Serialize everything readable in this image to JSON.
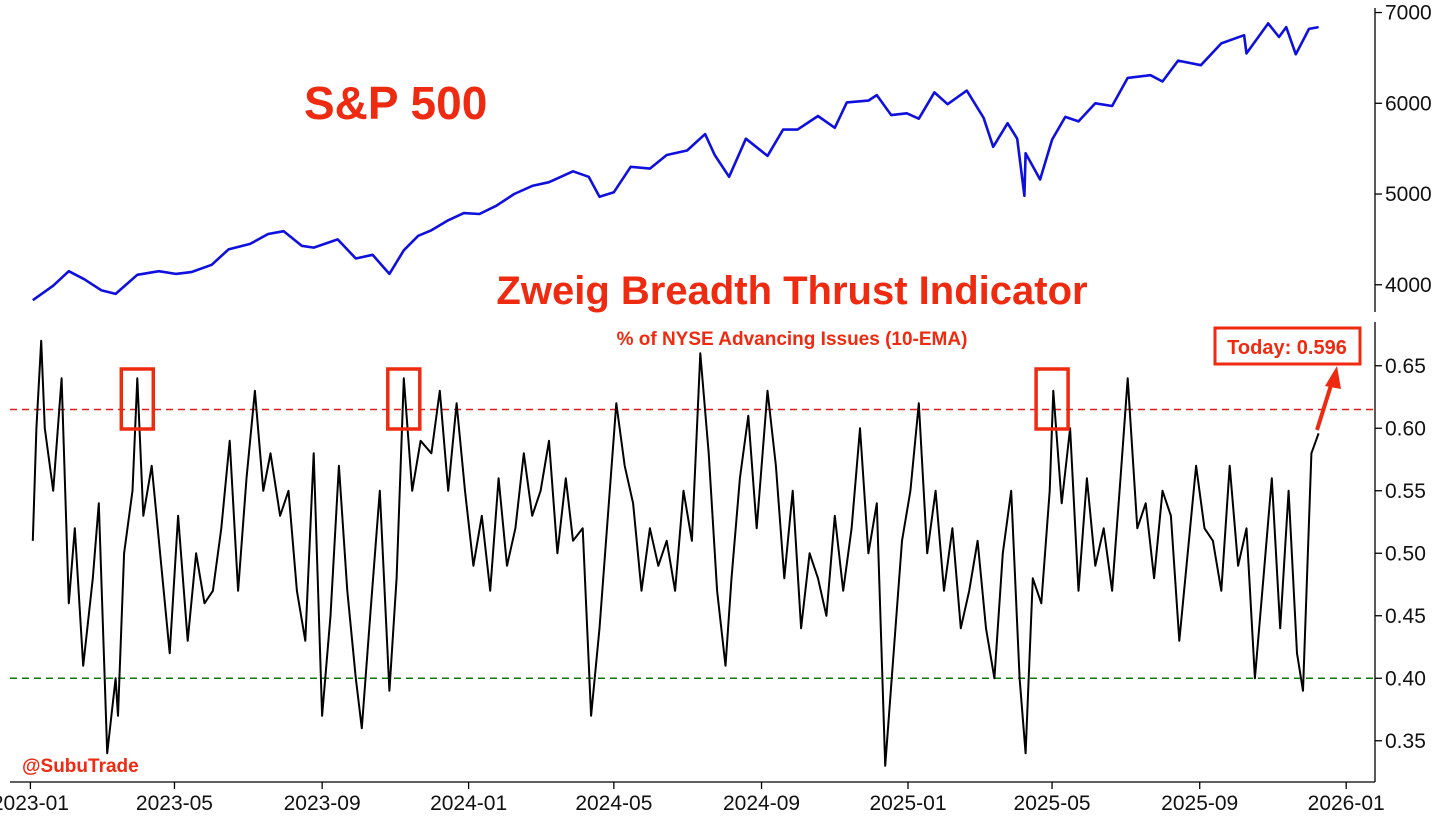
{
  "colors": {
    "sp500_line": "#1010dd",
    "zbt_line": "#000000",
    "accent_red": "#ee2a10",
    "upper_threshold_line": "#e02020",
    "lower_threshold_line": "#0a7a0a"
  },
  "chart_data": [
    {
      "type": "line",
      "title": "S&P 500",
      "y_axis_side": "right",
      "ylim": [
        3700,
        7050
      ],
      "yticks": [
        4000,
        5000,
        6000,
        7000
      ],
      "ytick_labels": [
        "4000",
        "5000",
        "6000",
        "7000"
      ],
      "series": [
        {
          "x": [
            "2023-01-03",
            "2023-01-20",
            "2023-02-02",
            "2023-02-15",
            "2023-03-01",
            "2023-03-13",
            "2023-03-31",
            "2023-04-18",
            "2023-05-02",
            "2023-05-15",
            "2023-06-01",
            "2023-06-15",
            "2023-07-03",
            "2023-07-18",
            "2023-07-31",
            "2023-08-15",
            "2023-08-25",
            "2023-09-14",
            "2023-09-29",
            "2023-10-13",
            "2023-10-27",
            "2023-11-08",
            "2023-11-20",
            "2023-12-01",
            "2023-12-15",
            "2023-12-28",
            "2024-01-10",
            "2024-01-24",
            "2024-02-08",
            "2024-02-23",
            "2024-03-08",
            "2024-03-28",
            "2024-04-10",
            "2024-04-19",
            "2024-05-01",
            "2024-05-15",
            "2024-05-31",
            "2024-06-14",
            "2024-07-01",
            "2024-07-16",
            "2024-07-24",
            "2024-08-05",
            "2024-08-19",
            "2024-09-06",
            "2024-09-19",
            "2024-10-01",
            "2024-10-18",
            "2024-11-01",
            "2024-11-11",
            "2024-11-29",
            "2024-12-06",
            "2024-12-18",
            "2024-12-31",
            "2025-01-10",
            "2025-01-23",
            "2025-02-03",
            "2025-02-19",
            "2025-03-05",
            "2025-03-13",
            "2025-03-25",
            "2025-04-02",
            "2025-04-08",
            "2025-04-09",
            "2025-04-21",
            "2025-05-01",
            "2025-05-12",
            "2025-05-23",
            "2025-06-06",
            "2025-06-20",
            "2025-07-03",
            "2025-07-22",
            "2025-08-01",
            "2025-08-14",
            "2025-09-02",
            "2025-09-19",
            "2025-10-08",
            "2025-10-10",
            "2025-10-28",
            "2025-11-06",
            "2025-11-12",
            "2025-11-20",
            "2025-12-01",
            "2025-12-09"
          ],
          "values": [
            3830,
            3990,
            4150,
            4060,
            3940,
            3900,
            4110,
            4150,
            4120,
            4140,
            4220,
            4390,
            4450,
            4560,
            4590,
            4430,
            4410,
            4500,
            4290,
            4330,
            4120,
            4380,
            4540,
            4600,
            4710,
            4790,
            4780,
            4870,
            5000,
            5090,
            5130,
            5250,
            5190,
            4970,
            5020,
            5300,
            5280,
            5430,
            5480,
            5660,
            5430,
            5190,
            5610,
            5420,
            5710,
            5710,
            5860,
            5730,
            6010,
            6030,
            6090,
            5870,
            5890,
            5830,
            6120,
            5990,
            6140,
            5840,
            5520,
            5780,
            5610,
            4980,
            5450,
            5160,
            5600,
            5850,
            5800,
            6000,
            5970,
            6280,
            6310,
            6240,
            6470,
            6420,
            6660,
            6750,
            6550,
            6880,
            6730,
            6840,
            6540,
            6820,
            6840
          ]
        }
      ]
    },
    {
      "type": "line",
      "title": "Zweig Breadth Thrust Indicator",
      "subtitle": "% of NYSE Advancing Issues (10-EMA)",
      "x_axis": {
        "range": [
          "2022-12-15",
          "2026-01-25"
        ],
        "ticks": [
          "2023-01-01",
          "2023-05-01",
          "2023-09-01",
          "2024-01-01",
          "2024-05-01",
          "2024-09-01",
          "2025-01-01",
          "2025-05-01",
          "2025-09-01",
          "2026-01-01"
        ],
        "tick_labels": [
          "2023-01",
          "2023-05",
          "2023-09",
          "2024-01",
          "2024-05",
          "2024-09",
          "2025-01",
          "2025-05",
          "2025-09",
          "2026-01"
        ]
      },
      "y_axis_side": "right",
      "ylim": [
        0.317,
        0.685
      ],
      "yticks": [
        0.35,
        0.4,
        0.45,
        0.5,
        0.55,
        0.6,
        0.65
      ],
      "ytick_labels": [
        "0.35",
        "0.40",
        "0.45",
        "0.50",
        "0.55",
        "0.60",
        "0.65"
      ],
      "threshold_lines": [
        {
          "value": 0.615,
          "style": "dashed",
          "color": "#e02020"
        },
        {
          "value": 0.4,
          "style": "dashed",
          "color": "#0a7a0a"
        }
      ],
      "highlight_box_dates": [
        "2023-03-31",
        "2023-11-08",
        "2025-05-01"
      ],
      "series": [
        {
          "x": [
            "2023-01-03",
            "2023-01-06",
            "2023-01-10",
            "2023-01-13",
            "2023-01-20",
            "2023-01-27",
            "2023-02-02",
            "2023-02-07",
            "2023-02-14",
            "2023-02-22",
            "2023-02-27",
            "2023-03-06",
            "2023-03-13",
            "2023-03-15",
            "2023-03-20",
            "2023-03-27",
            "2023-03-31",
            "2023-04-05",
            "2023-04-12",
            "2023-04-20",
            "2023-04-27",
            "2023-05-04",
            "2023-05-12",
            "2023-05-19",
            "2023-05-26",
            "2023-06-02",
            "2023-06-09",
            "2023-06-16",
            "2023-06-23",
            "2023-06-30",
            "2023-07-07",
            "2023-07-14",
            "2023-07-20",
            "2023-07-28",
            "2023-08-04",
            "2023-08-11",
            "2023-08-18",
            "2023-08-25",
            "2023-09-01",
            "2023-09-08",
            "2023-09-15",
            "2023-09-22",
            "2023-09-29",
            "2023-10-04",
            "2023-10-11",
            "2023-10-19",
            "2023-10-27",
            "2023-11-02",
            "2023-11-08",
            "2023-11-15",
            "2023-11-22",
            "2023-12-01",
            "2023-12-08",
            "2023-12-15",
            "2023-12-22",
            "2023-12-29",
            "2024-01-05",
            "2024-01-12",
            "2024-01-19",
            "2024-01-26",
            "2024-02-02",
            "2024-02-09",
            "2024-02-16",
            "2024-02-23",
            "2024-03-01",
            "2024-03-08",
            "2024-03-15",
            "2024-03-22",
            "2024-03-28",
            "2024-04-05",
            "2024-04-12",
            "2024-04-19",
            "2024-04-26",
            "2024-05-03",
            "2024-05-10",
            "2024-05-17",
            "2024-05-24",
            "2024-05-31",
            "2024-06-07",
            "2024-06-14",
            "2024-06-21",
            "2024-06-28",
            "2024-07-05",
            "2024-07-12",
            "2024-07-19",
            "2024-07-26",
            "2024-08-02",
            "2024-08-07",
            "2024-08-14",
            "2024-08-21",
            "2024-08-28",
            "2024-09-06",
            "2024-09-13",
            "2024-09-20",
            "2024-09-27",
            "2024-10-04",
            "2024-10-11",
            "2024-10-18",
            "2024-10-25",
            "2024-11-01",
            "2024-11-08",
            "2024-11-15",
            "2024-11-22",
            "2024-11-29",
            "2024-12-06",
            "2024-12-13",
            "2024-12-20",
            "2024-12-27",
            "2025-01-03",
            "2025-01-10",
            "2025-01-17",
            "2025-01-24",
            "2025-01-31",
            "2025-02-07",
            "2025-02-14",
            "2025-02-21",
            "2025-02-28",
            "2025-03-07",
            "2025-03-14",
            "2025-03-21",
            "2025-03-28",
            "2025-04-04",
            "2025-04-09",
            "2025-04-15",
            "2025-04-22",
            "2025-04-29",
            "2025-05-02",
            "2025-05-09",
            "2025-05-16",
            "2025-05-23",
            "2025-05-30",
            "2025-06-06",
            "2025-06-13",
            "2025-06-20",
            "2025-06-27",
            "2025-07-03",
            "2025-07-11",
            "2025-07-18",
            "2025-07-25",
            "2025-08-01",
            "2025-08-08",
            "2025-08-15",
            "2025-08-22",
            "2025-08-29",
            "2025-09-05",
            "2025-09-12",
            "2025-09-19",
            "2025-09-26",
            "2025-10-03",
            "2025-10-10",
            "2025-10-17",
            "2025-10-24",
            "2025-10-31",
            "2025-11-07",
            "2025-11-14",
            "2025-11-21",
            "2025-11-26",
            "2025-12-03",
            "2025-12-09"
          ],
          "values": [
            0.51,
            0.6,
            0.67,
            0.6,
            0.55,
            0.64,
            0.46,
            0.52,
            0.41,
            0.48,
            0.54,
            0.34,
            0.4,
            0.37,
            0.5,
            0.55,
            0.64,
            0.53,
            0.57,
            0.49,
            0.42,
            0.53,
            0.43,
            0.5,
            0.46,
            0.47,
            0.52,
            0.59,
            0.47,
            0.56,
            0.63,
            0.55,
            0.58,
            0.53,
            0.55,
            0.47,
            0.43,
            0.58,
            0.37,
            0.45,
            0.57,
            0.47,
            0.4,
            0.36,
            0.45,
            0.55,
            0.39,
            0.48,
            0.64,
            0.55,
            0.59,
            0.58,
            0.63,
            0.55,
            0.62,
            0.55,
            0.49,
            0.53,
            0.47,
            0.56,
            0.49,
            0.52,
            0.58,
            0.53,
            0.55,
            0.59,
            0.5,
            0.56,
            0.51,
            0.52,
            0.37,
            0.44,
            0.53,
            0.62,
            0.57,
            0.54,
            0.47,
            0.52,
            0.49,
            0.51,
            0.47,
            0.55,
            0.51,
            0.66,
            0.58,
            0.47,
            0.41,
            0.48,
            0.56,
            0.61,
            0.52,
            0.63,
            0.57,
            0.48,
            0.55,
            0.44,
            0.5,
            0.48,
            0.45,
            0.53,
            0.47,
            0.52,
            0.6,
            0.5,
            0.54,
            0.33,
            0.42,
            0.51,
            0.55,
            0.62,
            0.5,
            0.55,
            0.47,
            0.52,
            0.44,
            0.47,
            0.51,
            0.44,
            0.4,
            0.5,
            0.55,
            0.4,
            0.34,
            0.48,
            0.46,
            0.55,
            0.63,
            0.54,
            0.6,
            0.47,
            0.56,
            0.49,
            0.52,
            0.47,
            0.56,
            0.64,
            0.52,
            0.54,
            0.48,
            0.55,
            0.53,
            0.43,
            0.5,
            0.57,
            0.52,
            0.51,
            0.47,
            0.57,
            0.49,
            0.52,
            0.4,
            0.48,
            0.56,
            0.44,
            0.55,
            0.42,
            0.39,
            0.58,
            0.596
          ]
        }
      ],
      "annotations": [
        {
          "text": "Today: 0.596",
          "value": 0.596,
          "date": "2025-12-09"
        },
        {
          "text": "@SubuTrade"
        }
      ]
    }
  ]
}
